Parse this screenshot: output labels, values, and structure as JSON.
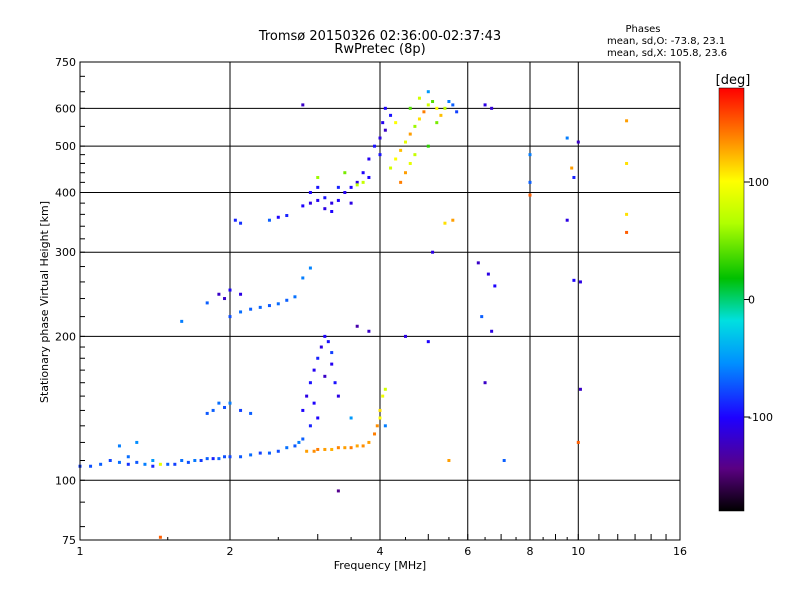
{
  "chart_data": {
    "type": "scatter",
    "title": "Tromsø 20150326 02:36:00-02:37:43",
    "subtitle": "RwPretec (8p)",
    "xlabel": "Frequency [MHz]",
    "ylabel": "Stationary phase Virtual Height [km]",
    "x_scale": "log",
    "y_scale": "log",
    "xlim": [
      1,
      16
    ],
    "ylim": [
      75,
      750
    ],
    "x_ticks": [
      1,
      2,
      4,
      6,
      8,
      10,
      16
    ],
    "x_tick_labels": [
      "1",
      "2",
      "4",
      "6",
      "8",
      "10",
      "16"
    ],
    "x_gridlines": [
      2,
      4,
      6,
      8,
      10
    ],
    "y_ticks": [
      75,
      100,
      200,
      300,
      400,
      500,
      600,
      750
    ],
    "y_tick_labels": [
      "75",
      "100",
      "200",
      "300",
      "400",
      "500",
      "600",
      "750"
    ],
    "y_gridlines": [
      100,
      200,
      300,
      400,
      500,
      600
    ],
    "grid": true,
    "stats": {
      "heading": "Phases",
      "o_line": "mean, sd,O: -73.8, 23.1",
      "x_line": "mean, sd,X: 105.8, 23.6"
    },
    "colorbar": {
      "label": "[deg]",
      "range": [
        -180,
        180
      ],
      "ticks": [
        -100,
        0,
        100
      ],
      "tick_labels": [
        "-100",
        "0",
        "100"
      ],
      "colormap": "rainbow"
    },
    "series": [
      {
        "points": [
          [
            1.0,
            107,
            -80
          ],
          [
            1.05,
            107,
            -75
          ],
          [
            1.1,
            108,
            -70
          ],
          [
            1.15,
            110,
            -78
          ],
          [
            1.2,
            109,
            -65
          ],
          [
            1.25,
            108,
            -85
          ],
          [
            1.3,
            109,
            -72
          ],
          [
            1.35,
            108,
            -60
          ],
          [
            1.4,
            107,
            -88
          ],
          [
            1.45,
            108,
            90
          ],
          [
            1.5,
            108,
            -70
          ],
          [
            1.55,
            108,
            -80
          ],
          [
            1.6,
            110,
            -65
          ],
          [
            1.65,
            109,
            -75
          ],
          [
            1.7,
            110,
            -62
          ],
          [
            1.75,
            110,
            -82
          ],
          [
            1.8,
            111,
            -70
          ],
          [
            1.85,
            111,
            -90
          ],
          [
            1.9,
            111,
            -68
          ],
          [
            1.95,
            112,
            -75
          ],
          [
            2.0,
            112,
            -78
          ],
          [
            2.1,
            112,
            -72
          ],
          [
            2.2,
            113,
            -66
          ],
          [
            2.3,
            114,
            -80
          ],
          [
            2.4,
            114,
            -70
          ],
          [
            2.5,
            115,
            -76
          ],
          [
            2.6,
            117,
            -64
          ],
          [
            2.7,
            118,
            -72
          ],
          [
            2.75,
            120,
            -60
          ],
          [
            2.8,
            122,
            -70
          ],
          [
            1.2,
            118,
            -60
          ],
          [
            1.3,
            120,
            -55
          ],
          [
            1.25,
            112,
            -65
          ],
          [
            1.4,
            110,
            -50
          ]
        ]
      },
      {
        "points": [
          [
            2.8,
            140,
            -100
          ],
          [
            2.85,
            150,
            -110
          ],
          [
            2.9,
            160,
            -95
          ],
          [
            2.95,
            170,
            -105
          ],
          [
            3.0,
            180,
            -90
          ],
          [
            3.05,
            190,
            -110
          ],
          [
            3.1,
            200,
            -100
          ],
          [
            3.15,
            195,
            -95
          ],
          [
            3.2,
            185,
            -80
          ],
          [
            3.0,
            135,
            -100
          ],
          [
            2.9,
            130,
            -90
          ],
          [
            3.1,
            165,
            -120
          ],
          [
            3.2,
            175,
            -105
          ],
          [
            3.25,
            160,
            -95
          ],
          [
            3.3,
            150,
            -110
          ],
          [
            2.95,
            145,
            -100
          ]
        ]
      },
      {
        "points": [
          [
            2.85,
            115,
            130
          ],
          [
            2.95,
            115,
            135
          ],
          [
            3.0,
            116,
            140
          ],
          [
            3.1,
            116,
            130
          ],
          [
            3.2,
            116,
            125
          ],
          [
            3.3,
            117,
            138
          ],
          [
            3.4,
            117,
            130
          ],
          [
            3.5,
            117,
            140
          ],
          [
            3.6,
            118,
            128
          ],
          [
            3.7,
            118,
            135
          ],
          [
            3.8,
            120,
            130
          ],
          [
            3.9,
            125,
            140
          ],
          [
            3.95,
            130,
            135
          ],
          [
            4.0,
            135,
            100
          ],
          [
            4.0,
            140,
            110
          ],
          [
            4.05,
            150,
            95
          ],
          [
            4.1,
            155,
            80
          ]
        ]
      },
      {
        "points": [
          [
            1.85,
            140,
            -70
          ],
          [
            1.9,
            145,
            -65
          ],
          [
            1.95,
            142,
            -75
          ],
          [
            2.0,
            145,
            -60
          ],
          [
            2.1,
            140,
            -80
          ],
          [
            2.2,
            138,
            -70
          ],
          [
            1.8,
            138,
            -72
          ]
        ]
      },
      {
        "points": [
          [
            1.6,
            215,
            -60
          ],
          [
            1.8,
            235,
            -70
          ],
          [
            1.9,
            245,
            -120
          ],
          [
            2.0,
            220,
            -75
          ],
          [
            2.1,
            225,
            -65
          ],
          [
            2.2,
            228,
            -70
          ],
          [
            2.3,
            230,
            -68
          ],
          [
            2.4,
            232,
            -72
          ],
          [
            2.5,
            234,
            -66
          ],
          [
            2.6,
            238,
            -70
          ],
          [
            2.7,
            242,
            -64
          ],
          [
            2.8,
            265,
            -60
          ],
          [
            2.9,
            278,
            -58
          ],
          [
            2.0,
            250,
            -100
          ],
          [
            2.1,
            245,
            -110
          ],
          [
            1.95,
            240,
            -120
          ]
        ]
      },
      {
        "points": [
          [
            2.05,
            350,
            -90
          ],
          [
            2.1,
            345,
            -85
          ],
          [
            2.4,
            350,
            -70
          ],
          [
            2.5,
            355,
            -100
          ],
          [
            2.6,
            358,
            -90
          ],
          [
            2.8,
            375,
            -100
          ],
          [
            2.9,
            380,
            -110
          ],
          [
            3.0,
            385,
            -105
          ],
          [
            3.1,
            390,
            -95
          ],
          [
            3.2,
            380,
            -110
          ],
          [
            3.3,
            385,
            -100
          ],
          [
            3.4,
            400,
            -105
          ],
          [
            3.5,
            410,
            -100
          ],
          [
            3.6,
            420,
            -110
          ],
          [
            3.7,
            440,
            -100
          ],
          [
            3.8,
            470,
            -105
          ],
          [
            3.9,
            500,
            -95
          ],
          [
            4.0,
            520,
            -110
          ],
          [
            4.05,
            560,
            -105
          ],
          [
            4.1,
            600,
            -100
          ],
          [
            2.9,
            400,
            -100
          ],
          [
            3.0,
            410,
            -95
          ],
          [
            3.1,
            370,
            -110
          ],
          [
            3.2,
            365,
            -100
          ],
          [
            3.3,
            410,
            -90
          ],
          [
            3.5,
            380,
            -110
          ],
          [
            3.8,
            430,
            -100
          ],
          [
            4.0,
            480,
            -95
          ],
          [
            4.1,
            540,
            -120
          ],
          [
            4.2,
            580,
            -95
          ],
          [
            3.0,
            430,
            60
          ],
          [
            3.4,
            440,
            50
          ],
          [
            3.6,
            415,
            70
          ],
          [
            3.7,
            420,
            75
          ]
        ]
      },
      {
        "points": [
          [
            4.2,
            450,
            80
          ],
          [
            4.3,
            470,
            100
          ],
          [
            4.4,
            490,
            120
          ],
          [
            4.5,
            510,
            90
          ],
          [
            4.6,
            530,
            130
          ],
          [
            4.7,
            550,
            60
          ],
          [
            4.8,
            570,
            110
          ],
          [
            4.9,
            590,
            140
          ],
          [
            5.0,
            610,
            80
          ],
          [
            5.1,
            620,
            40
          ],
          [
            5.2,
            600,
            100
          ],
          [
            5.3,
            580,
            120
          ],
          [
            4.5,
            440,
            130
          ],
          [
            4.6,
            460,
            90
          ],
          [
            4.7,
            480,
            75
          ],
          [
            4.4,
            420,
            140
          ],
          [
            5.0,
            500,
            30
          ],
          [
            5.2,
            560,
            50
          ],
          [
            5.4,
            600,
            70
          ],
          [
            5.5,
            620,
            -60
          ],
          [
            5.6,
            610,
            -70
          ],
          [
            5.7,
            590,
            -80
          ],
          [
            4.3,
            560,
            100
          ],
          [
            4.6,
            600,
            40
          ],
          [
            4.8,
            630,
            80
          ],
          [
            5.0,
            650,
            -50
          ]
        ]
      },
      {
        "points": [
          [
            2.8,
            610,
            -120
          ],
          [
            3.6,
            210,
            -130
          ],
          [
            3.8,
            205,
            -120
          ],
          [
            4.5,
            200,
            -110
          ],
          [
            5.0,
            195,
            -100
          ],
          [
            6.5,
            610,
            -110
          ],
          [
            6.7,
            600,
            -115
          ],
          [
            6.3,
            285,
            -120
          ],
          [
            6.6,
            270,
            -110
          ],
          [
            6.8,
            255,
            -100
          ],
          [
            6.4,
            220,
            -70
          ],
          [
            6.7,
            205,
            -110
          ],
          [
            6.5,
            160,
            -120
          ],
          [
            7.1,
            110,
            -70
          ],
          [
            8.0,
            480,
            -60
          ],
          [
            8.0,
            420,
            -70
          ],
          [
            8.0,
            395,
            150
          ],
          [
            9.5,
            520,
            -60
          ],
          [
            9.7,
            450,
            130
          ],
          [
            9.8,
            430,
            -90
          ],
          [
            9.5,
            350,
            -110
          ],
          [
            10.0,
            510,
            -120
          ],
          [
            10.1,
            260,
            -110
          ],
          [
            9.8,
            262,
            -100
          ],
          [
            10.1,
            155,
            -120
          ],
          [
            10.0,
            120,
            150
          ],
          [
            12.5,
            565,
            130
          ],
          [
            12.5,
            460,
            110
          ],
          [
            12.5,
            360,
            110
          ],
          [
            12.5,
            330,
            150
          ],
          [
            5.6,
            350,
            130
          ],
          [
            5.4,
            345,
            110
          ],
          [
            5.1,
            300,
            -110
          ],
          [
            5.5,
            110,
            130
          ],
          [
            3.3,
            95,
            -140
          ],
          [
            1.45,
            76,
            150
          ],
          [
            4.1,
            130,
            -60
          ],
          [
            3.5,
            135,
            -50
          ]
        ]
      }
    ]
  }
}
